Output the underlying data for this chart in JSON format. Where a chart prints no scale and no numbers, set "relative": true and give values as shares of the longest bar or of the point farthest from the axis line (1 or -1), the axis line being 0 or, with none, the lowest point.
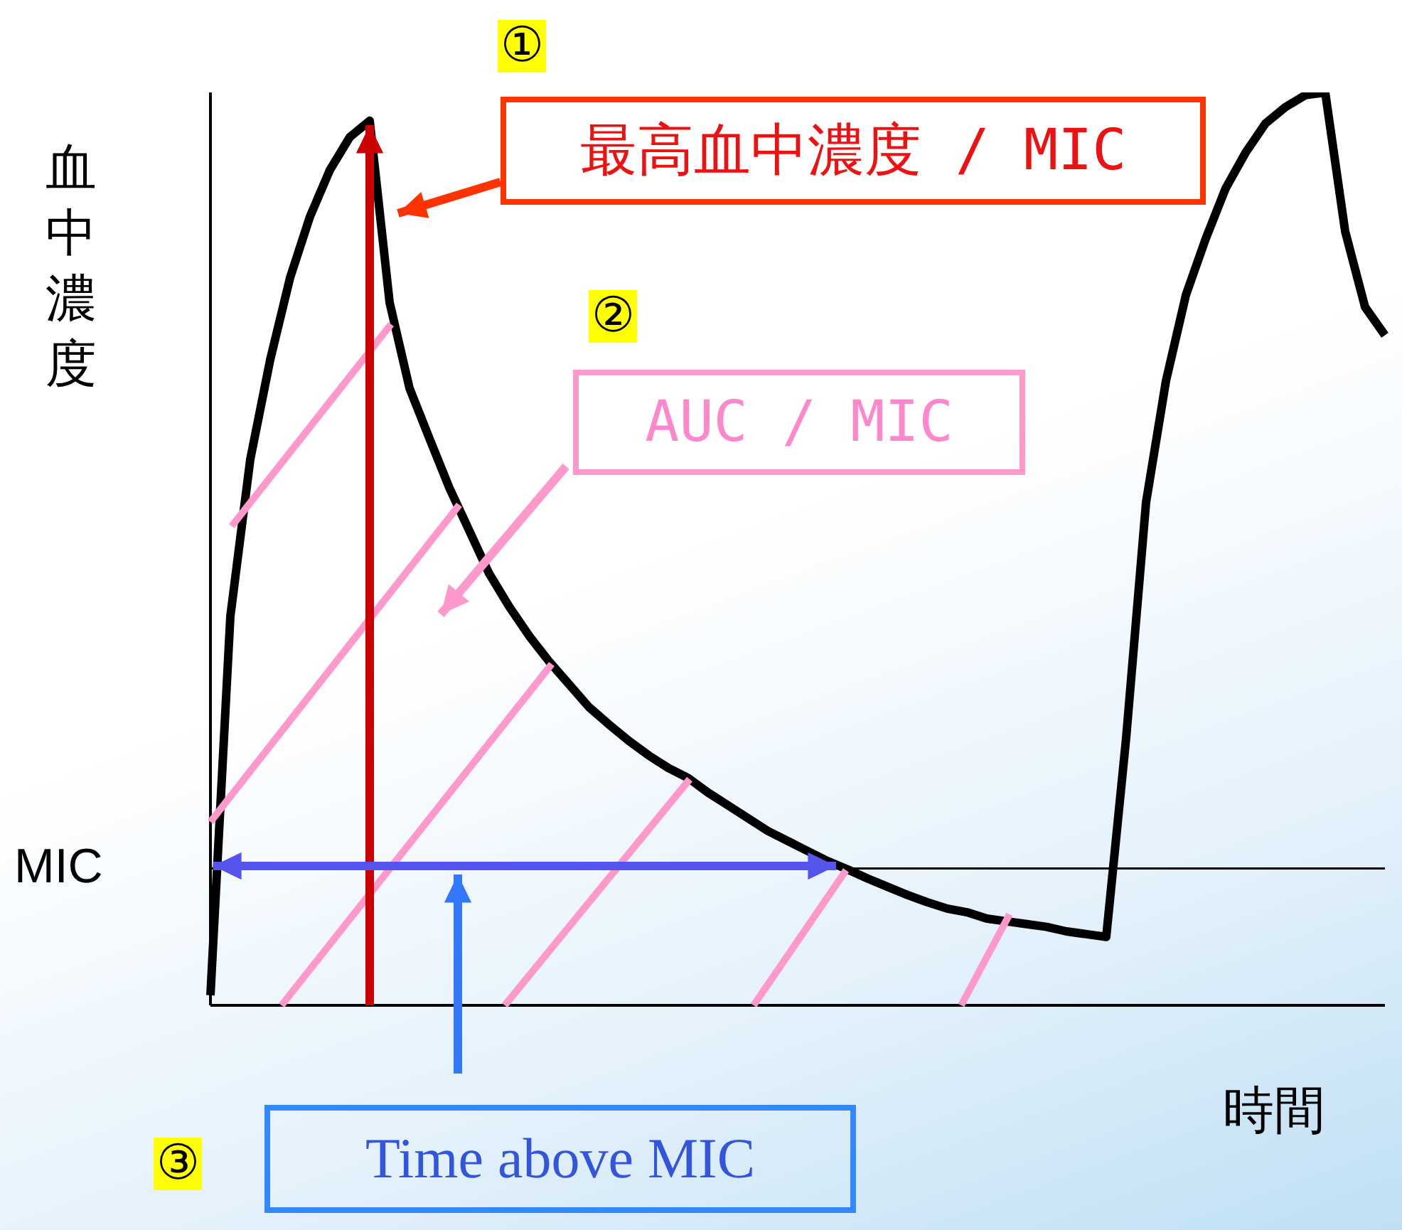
{
  "chart_data": {
    "type": "line",
    "relative": true,
    "ylabel": "血中濃度",
    "xlabel": "時間",
    "categories": [
      null,
      null,
      null,
      null,
      null,
      null,
      null,
      null,
      null,
      null,
      null,
      null,
      null,
      null,
      null,
      null,
      null,
      null,
      null,
      null,
      null,
      null,
      null,
      null,
      null,
      null,
      null,
      null,
      null,
      null,
      null,
      null,
      null,
      null,
      null,
      null,
      null,
      null,
      null,
      null,
      null,
      null,
      null,
      null,
      null,
      null,
      null,
      null,
      null,
      null,
      null,
      null,
      null,
      null,
      null,
      null,
      null,
      null,
      null,
      null
    ],
    "series": [
      {
        "color": "#000000",
        "values": [
          0.011,
          0.426,
          0.598,
          0.707,
          0.797,
          0.864,
          0.915,
          0.951,
          0.969,
          0.77,
          0.676,
          0.621,
          0.567,
          0.52,
          0.473,
          0.437,
          0.405,
          0.377,
          0.352,
          0.327,
          0.308,
          0.29,
          0.274,
          0.26,
          0.249,
          0.233,
          0.219,
          0.205,
          0.191,
          0.18,
          0.169,
          0.158,
          0.149,
          0.139,
          0.13,
          0.121,
          0.113,
          0.106,
          0.102,
          0.095,
          0.092,
          0.089,
          0.086,
          0.081,
          0.078,
          0.075,
          0.293,
          0.551,
          0.684,
          0.778,
          0.84,
          0.895,
          0.934,
          0.966,
          0.984,
          0.997,
          1,
          0.848,
          0.765,
          0.734
        ]
      }
    ],
    "ref_lines": [
      {
        "axis": "y",
        "value": 0.15,
        "label": "MIC",
        "color": "#000000"
      }
    ],
    "annotations": [
      "①",
      "最高血中濃度 / MIC",
      "②",
      "AUC / MIC",
      "③",
      "Time above MIC"
    ]
  }
}
